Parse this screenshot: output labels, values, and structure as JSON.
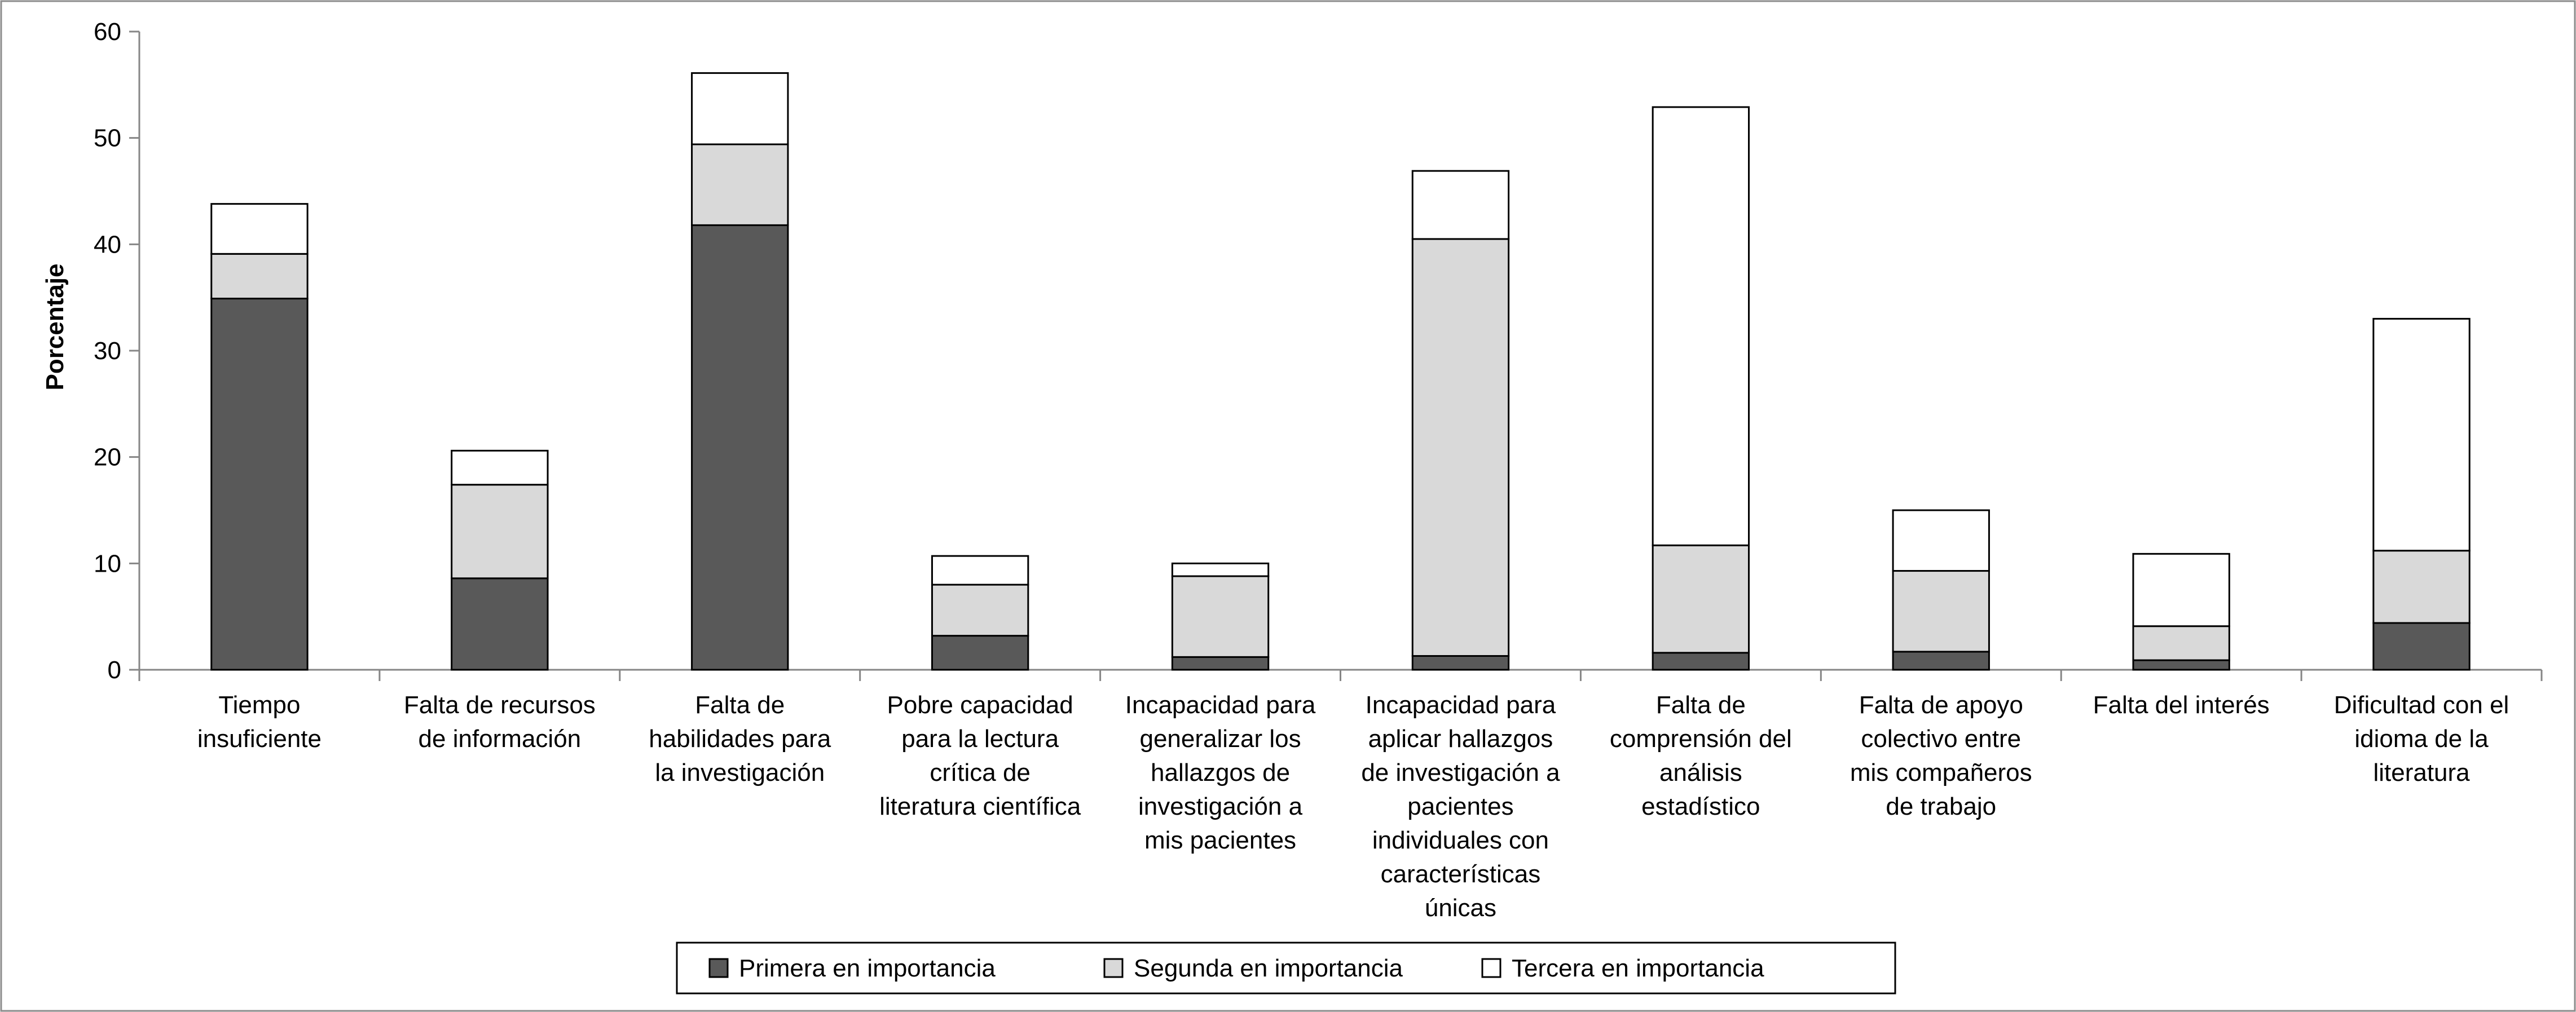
{
  "chart_data": {
    "type": "bar",
    "stacked": true,
    "title": "",
    "xlabel": "",
    "ylabel": "Porcentaje",
    "ylim": [
      0,
      60
    ],
    "yticks": [
      0,
      10,
      20,
      30,
      40,
      50,
      60
    ],
    "grid": false,
    "legend_position": "bottom",
    "categories": [
      [
        "Tiempo",
        "insuficiente"
      ],
      [
        "Falta de recursos",
        "de información"
      ],
      [
        "Falta de",
        "habilidades para",
        "la investigación"
      ],
      [
        "Pobre capacidad",
        "para la lectura",
        "crítica de",
        "literatura científica"
      ],
      [
        "Incapacidad para",
        "generalizar los",
        "hallazgos de",
        "investigación a",
        "mis pacientes"
      ],
      [
        "Incapacidad para",
        "aplicar hallazgos",
        "de investigación a",
        "pacientes",
        "individuales con",
        "características",
        "únicas"
      ],
      [
        "Falta de",
        "comprensión del",
        "análisis",
        "estadístico"
      ],
      [
        "Falta de apoyo",
        "colectivo entre",
        "mis compañeros",
        "de trabajo"
      ],
      [
        "Falta del interés"
      ],
      [
        "Dificultad con el",
        "idioma de la",
        "literatura"
      ]
    ],
    "series": [
      {
        "name": "Primera en importancia",
        "color": "#595959",
        "values": [
          34.9,
          8.6,
          41.8,
          3.2,
          1.2,
          1.3,
          1.6,
          1.7,
          0.9,
          4.4
        ]
      },
      {
        "name": "Segunda en importancia",
        "color": "#d9d9d9",
        "values": [
          4.2,
          8.8,
          7.6,
          4.8,
          7.6,
          39.2,
          10.1,
          7.6,
          3.2,
          6.8
        ]
      },
      {
        "name": "Tercera en importancia",
        "color": "#ffffff",
        "values": [
          4.7,
          3.2,
          6.7,
          2.7,
          1.2,
          6.4,
          41.2,
          5.7,
          6.8,
          21.8
        ]
      }
    ]
  }
}
